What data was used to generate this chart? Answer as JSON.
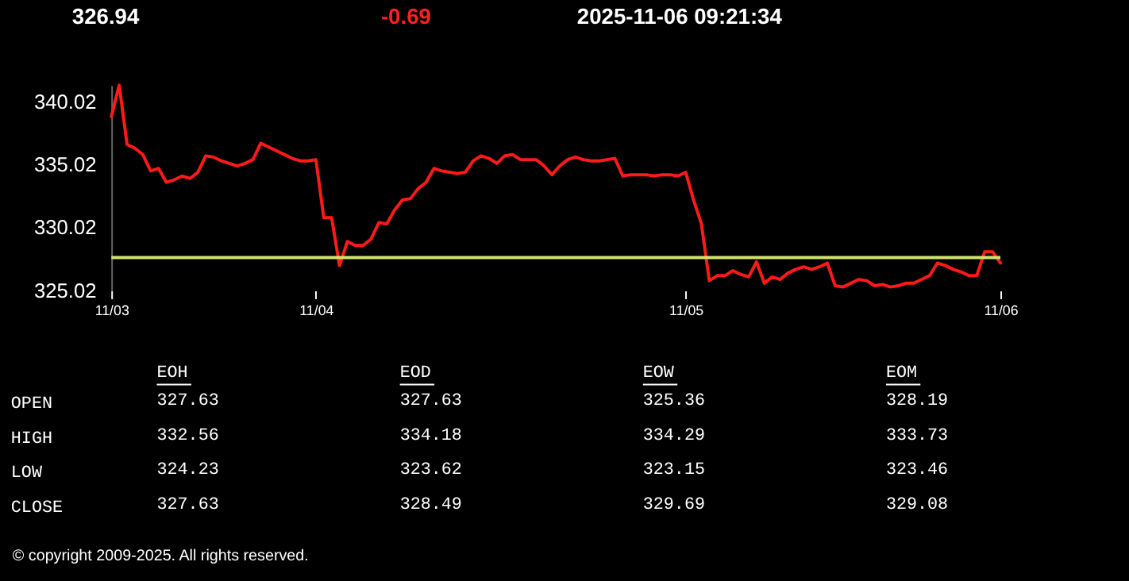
{
  "chart_data": [
    {
      "type": "line",
      "annotations": [
        "326.94",
        "-0.69",
        "2025-11-06 09:21:34"
      ],
      "categories": [
        "11/03",
        null,
        null,
        null,
        null,
        null,
        null,
        null,
        null,
        null,
        null,
        null,
        null,
        null,
        null,
        null,
        null,
        null,
        null,
        null,
        null,
        null,
        null,
        null,
        null,
        null,
        "11/04",
        null,
        null,
        null,
        null,
        null,
        null,
        null,
        null,
        null,
        null,
        null,
        null,
        null,
        null,
        null,
        null,
        null,
        null,
        null,
        null,
        null,
        null,
        null,
        null,
        null,
        null,
        null,
        null,
        null,
        null,
        null,
        null,
        null,
        null,
        null,
        null,
        null,
        null,
        null,
        null,
        null,
        null,
        null,
        null,
        null,
        null,
        "11/05",
        null,
        null,
        null,
        null,
        null,
        null,
        null,
        null,
        null,
        null,
        null,
        null,
        null,
        null,
        null,
        null,
        null,
        null,
        null,
        null,
        null,
        null,
        null,
        null,
        null,
        null,
        null,
        null,
        null,
        null,
        null,
        null,
        null,
        null,
        null,
        null,
        null,
        null,
        null,
        "11/06"
      ],
      "series": [
        {
          "color": "#ff1a1a",
          "values": [
            338.8,
            341.3,
            336.6,
            336.3,
            335.8,
            334.5,
            334.7,
            333.6,
            333.8,
            334.1,
            333.9,
            334.4,
            335.7,
            335.6,
            335.3,
            335.1,
            334.9,
            335.1,
            335.4,
            336.7,
            336.4,
            336.1,
            335.8,
            335.5,
            335.3,
            335.3,
            335.4,
            330.8,
            330.8,
            327.0,
            328.9,
            328.6,
            328.6,
            329.1,
            330.4,
            330.3,
            331.4,
            332.2,
            332.3,
            333.1,
            333.6,
            334.7,
            334.5,
            334.4,
            334.3,
            334.4,
            335.3,
            335.7,
            335.5,
            335.1,
            335.7,
            335.8,
            335.4,
            335.4,
            335.4,
            334.9,
            334.2,
            334.9,
            335.4,
            335.6,
            335.4,
            335.3,
            335.3,
            335.4,
            335.5,
            334.1,
            334.2,
            334.2,
            334.2,
            334.1,
            334.2,
            334.2,
            334.1,
            334.4,
            332.2,
            330.3,
            325.8,
            326.2,
            326.2,
            326.6,
            326.3,
            326.1,
            327.3,
            325.6,
            326.1,
            325.9,
            326.4,
            326.7,
            326.9,
            326.7,
            326.9,
            327.2,
            325.4,
            325.3,
            325.6,
            325.9,
            325.8,
            325.4,
            325.5,
            325.3,
            325.4,
            325.6,
            325.6,
            325.9,
            326.2,
            327.2,
            327.0,
            326.7,
            326.5,
            326.2,
            326.2,
            328.1,
            328.1,
            327.2
          ]
        }
      ],
      "ylim": [
        325.02,
        341.3
      ],
      "yticks": [
        {
          "value": 325.02,
          "label": "325.02"
        },
        {
          "value": 330.02,
          "label": "330.02"
        },
        {
          "value": 335.02,
          "label": "335.02"
        },
        {
          "value": 340.02,
          "label": "340.02"
        }
      ],
      "ref_lines": [
        {
          "axis": "y",
          "value": 327.63,
          "color": "#cfe26b"
        }
      ],
      "grid": false
    },
    {
      "type": "other",
      "categories": [
        "EOH",
        "EOD",
        "EOW",
        "EOM"
      ],
      "y_categories": [
        "OPEN",
        "HIGH",
        "LOW",
        "CLOSE"
      ],
      "annotations": [
        {
          "text": "327.63",
          "x": "EOH",
          "y": "OPEN"
        },
        {
          "text": "327.63",
          "x": "EOD",
          "y": "OPEN"
        },
        {
          "text": "325.36",
          "x": "EOW",
          "y": "OPEN"
        },
        {
          "text": "328.19",
          "x": "EOM",
          "y": "OPEN"
        },
        {
          "text": "332.56",
          "x": "EOH",
          "y": "HIGH"
        },
        {
          "text": "334.18",
          "x": "EOD",
          "y": "HIGH"
        },
        {
          "text": "334.29",
          "x": "EOW",
          "y": "HIGH"
        },
        {
          "text": "333.73",
          "x": "EOM",
          "y": "HIGH"
        },
        {
          "text": "324.23",
          "x": "EOH",
          "y": "LOW"
        },
        {
          "text": "323.62",
          "x": "EOD",
          "y": "LOW"
        },
        {
          "text": "323.15",
          "x": "EOW",
          "y": "LOW"
        },
        {
          "text": "323.46",
          "x": "EOM",
          "y": "LOW"
        },
        {
          "text": "327.63",
          "x": "EOH",
          "y": "CLOSE"
        },
        {
          "text": "328.49",
          "x": "EOD",
          "y": "CLOSE"
        },
        {
          "text": "329.69",
          "x": "EOW",
          "y": "CLOSE"
        },
        {
          "text": "329.08",
          "x": "EOM",
          "y": "CLOSE"
        },
        "© copyright 2009-2025. All rights reserved."
      ]
    }
  ]
}
